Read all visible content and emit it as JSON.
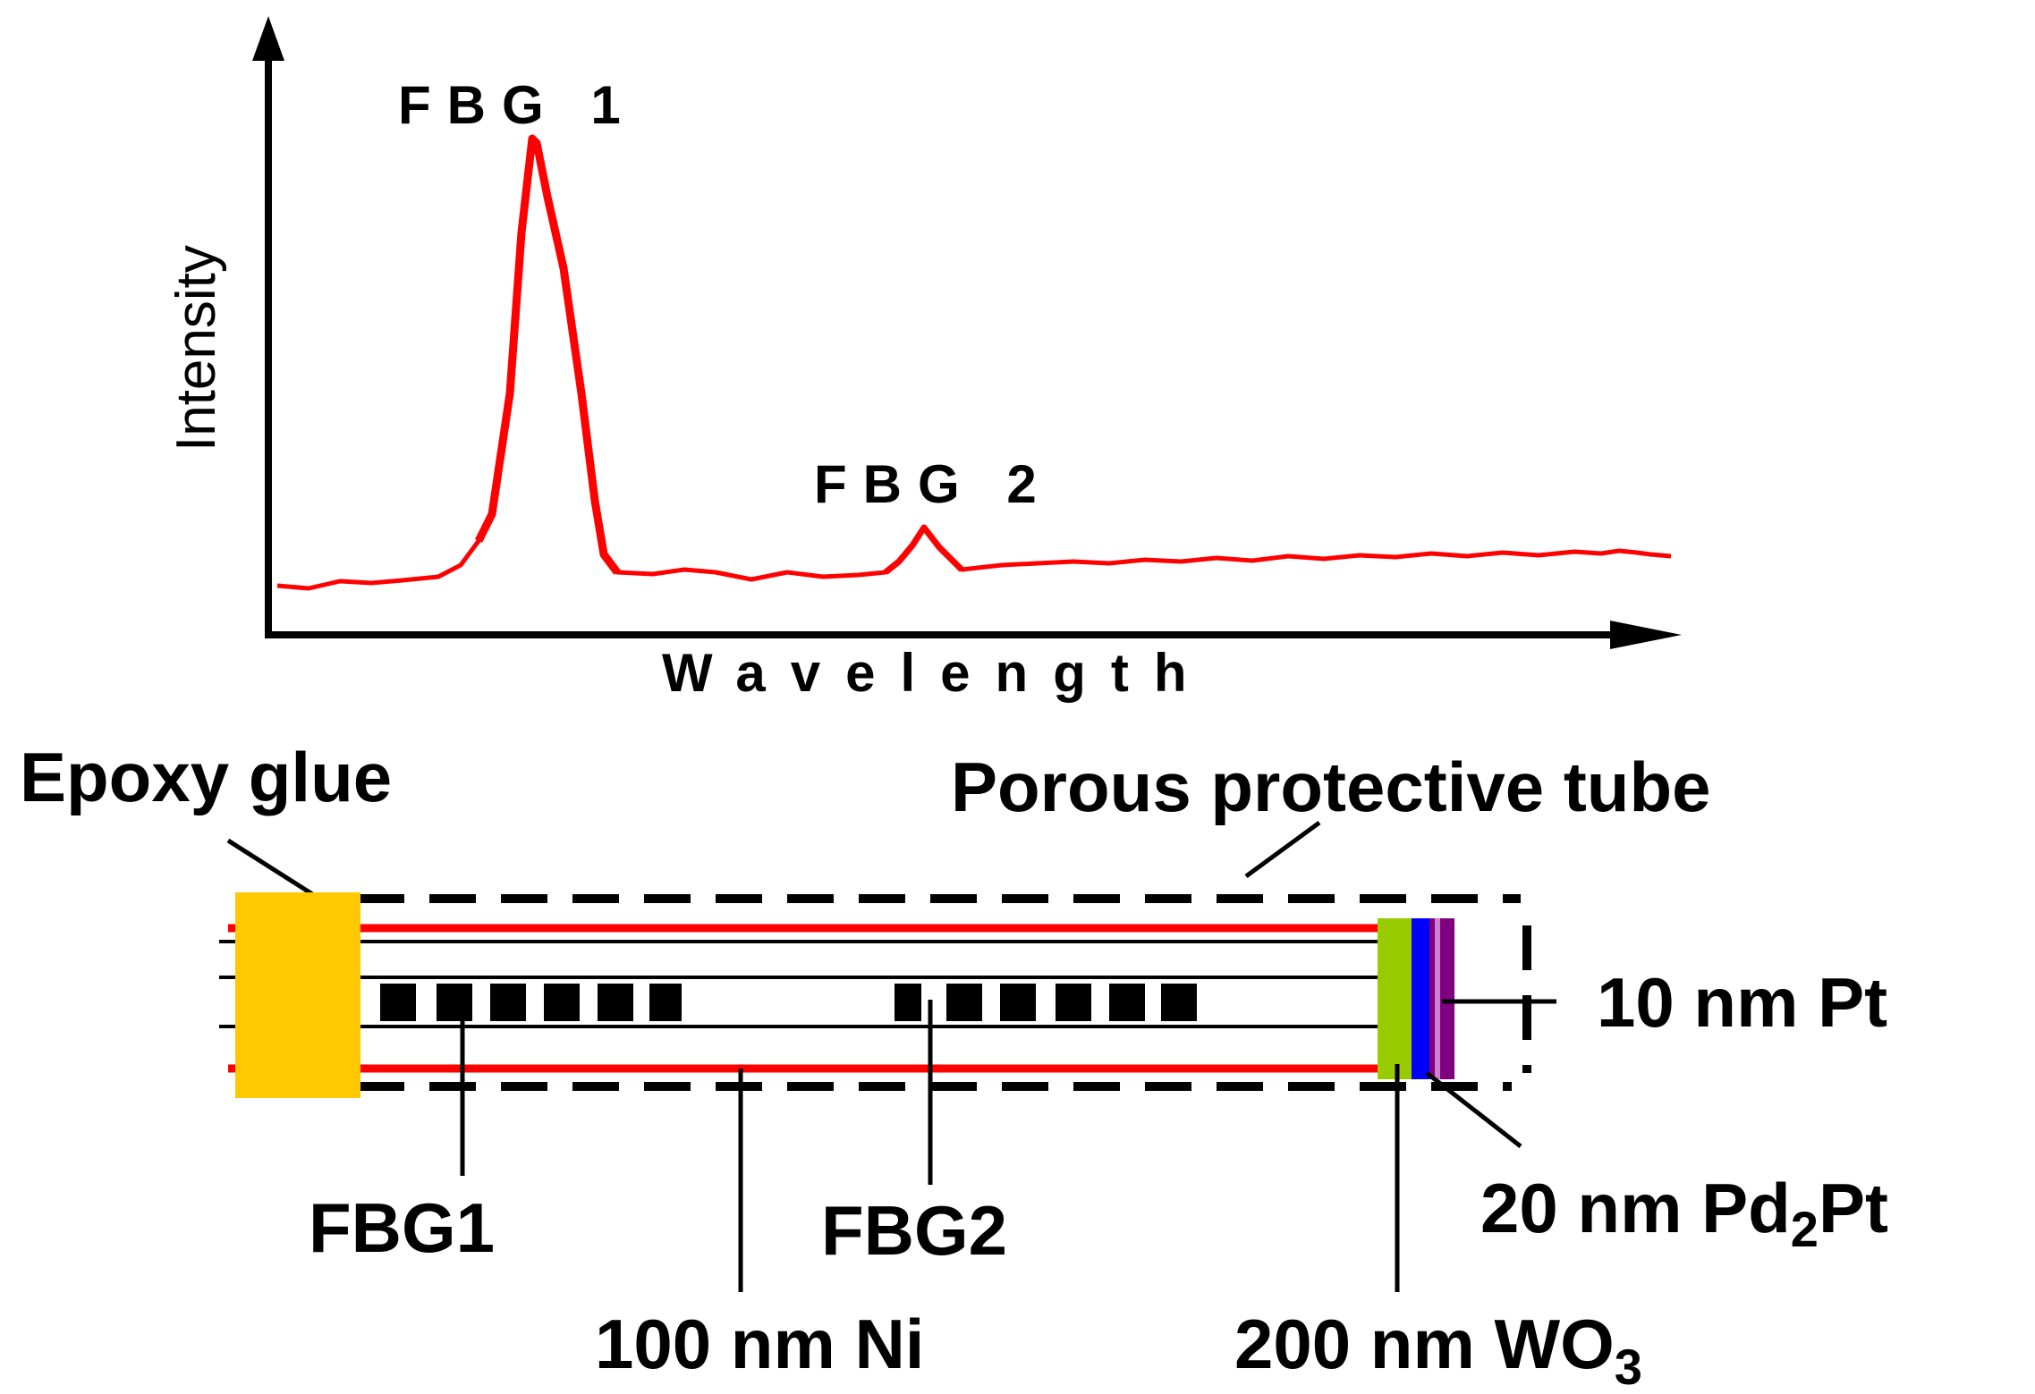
{
  "spectrum": {
    "y_axis_label": "Intensity",
    "x_axis_label": "Wavelength",
    "peaks": [
      {
        "label": "FBG 1"
      },
      {
        "label": "FBG 2"
      }
    ],
    "trace_color": "#ff0000"
  },
  "sensor": {
    "labels": {
      "epoxy": "Epoxy glue",
      "tube": "Porous protective tube",
      "fbg1": "FBG1",
      "fbg2": "FBG2",
      "ni": "100 nm Ni",
      "wo3": "200 nm WO",
      "wo3_sub": "3",
      "pd2pt_a": "20 nm Pd",
      "pd2pt_sub": "2",
      "pd2pt_b": "Pt",
      "pt": "10 nm Pt"
    },
    "colors": {
      "epoxy": "#ffc800",
      "ni_coating": "#ff0000",
      "wo3": "#99cc00",
      "pd2pt": "#0000ff",
      "pt": "#800080"
    }
  }
}
